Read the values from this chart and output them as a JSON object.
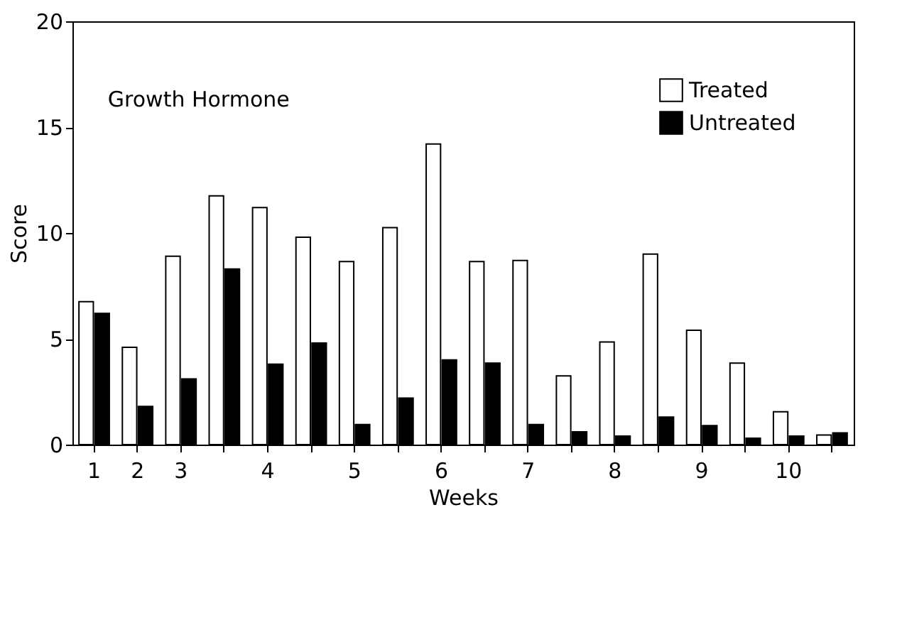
{
  "chart_data": {
    "type": "bar",
    "title": "Growth Hormone",
    "xlabel": "Weeks",
    "ylabel": "Score",
    "categories": [
      "1",
      "2",
      "3",
      null,
      "4",
      null,
      "5",
      null,
      "6",
      null,
      "7",
      null,
      "8",
      null,
      "9",
      null,
      "10",
      null
    ],
    "series": [
      {
        "name": "Treated",
        "color": "#ffffff",
        "values": [
          6.75,
          4.6,
          8.9,
          11.75,
          11.2,
          9.8,
          8.65,
          10.25,
          14.2,
          8.65,
          8.7,
          3.25,
          4.85,
          9.0,
          5.4,
          3.85,
          1.55,
          0.45
        ]
      },
      {
        "name": "Untreated",
        "color": "#000000",
        "values": [
          6.2,
          1.8,
          3.1,
          8.3,
          3.8,
          4.8,
          0.95,
          2.2,
          4.0,
          3.85,
          0.95,
          0.6,
          0.4,
          1.3,
          0.9,
          0.3,
          0.4,
          0.55
        ]
      }
    ],
    "ylim": [
      0,
      20
    ],
    "yticks": [
      0,
      5,
      10,
      15,
      20
    ],
    "grid": false,
    "legend": "top right"
  }
}
